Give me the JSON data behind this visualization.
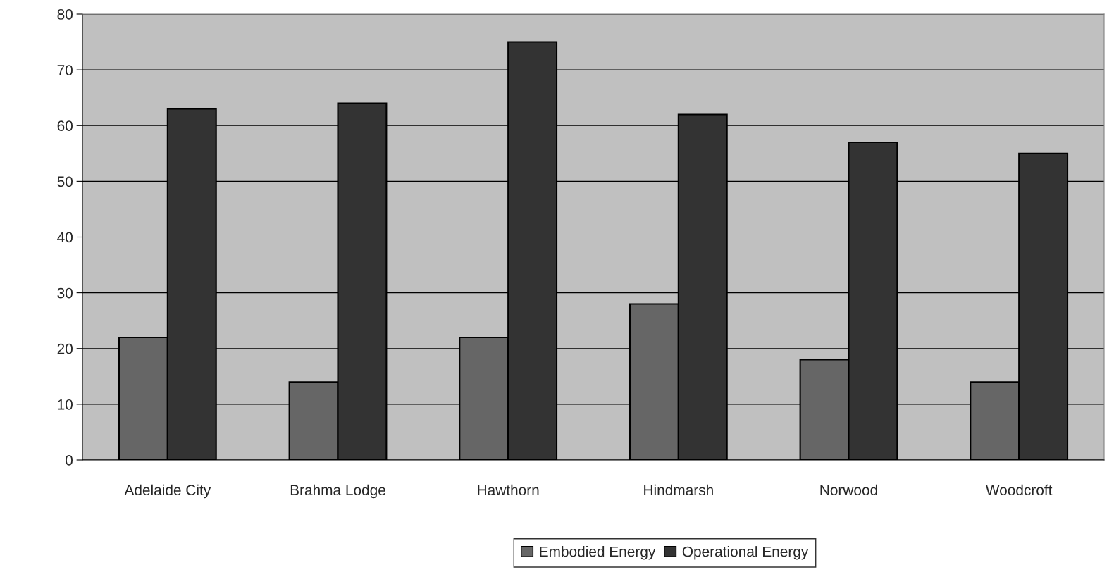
{
  "chart_data": {
    "type": "bar",
    "categories": [
      "Adelaide City",
      "Brahma Lodge",
      "Hawthorn",
      "Hindmarsh",
      "Norwood",
      "Woodcroft"
    ],
    "series": [
      {
        "name": "Embodied Energy",
        "color": "#666666",
        "values": [
          22,
          14,
          22,
          28,
          18,
          14
        ]
      },
      {
        "name": "Operational Energy",
        "color": "#333333",
        "values": [
          63,
          64,
          75,
          62,
          57,
          55
        ]
      }
    ],
    "ylim": [
      0,
      80
    ],
    "yticks": [
      0,
      10,
      20,
      30,
      40,
      50,
      60,
      70,
      80
    ],
    "grid": "y",
    "legend": "bottom"
  }
}
